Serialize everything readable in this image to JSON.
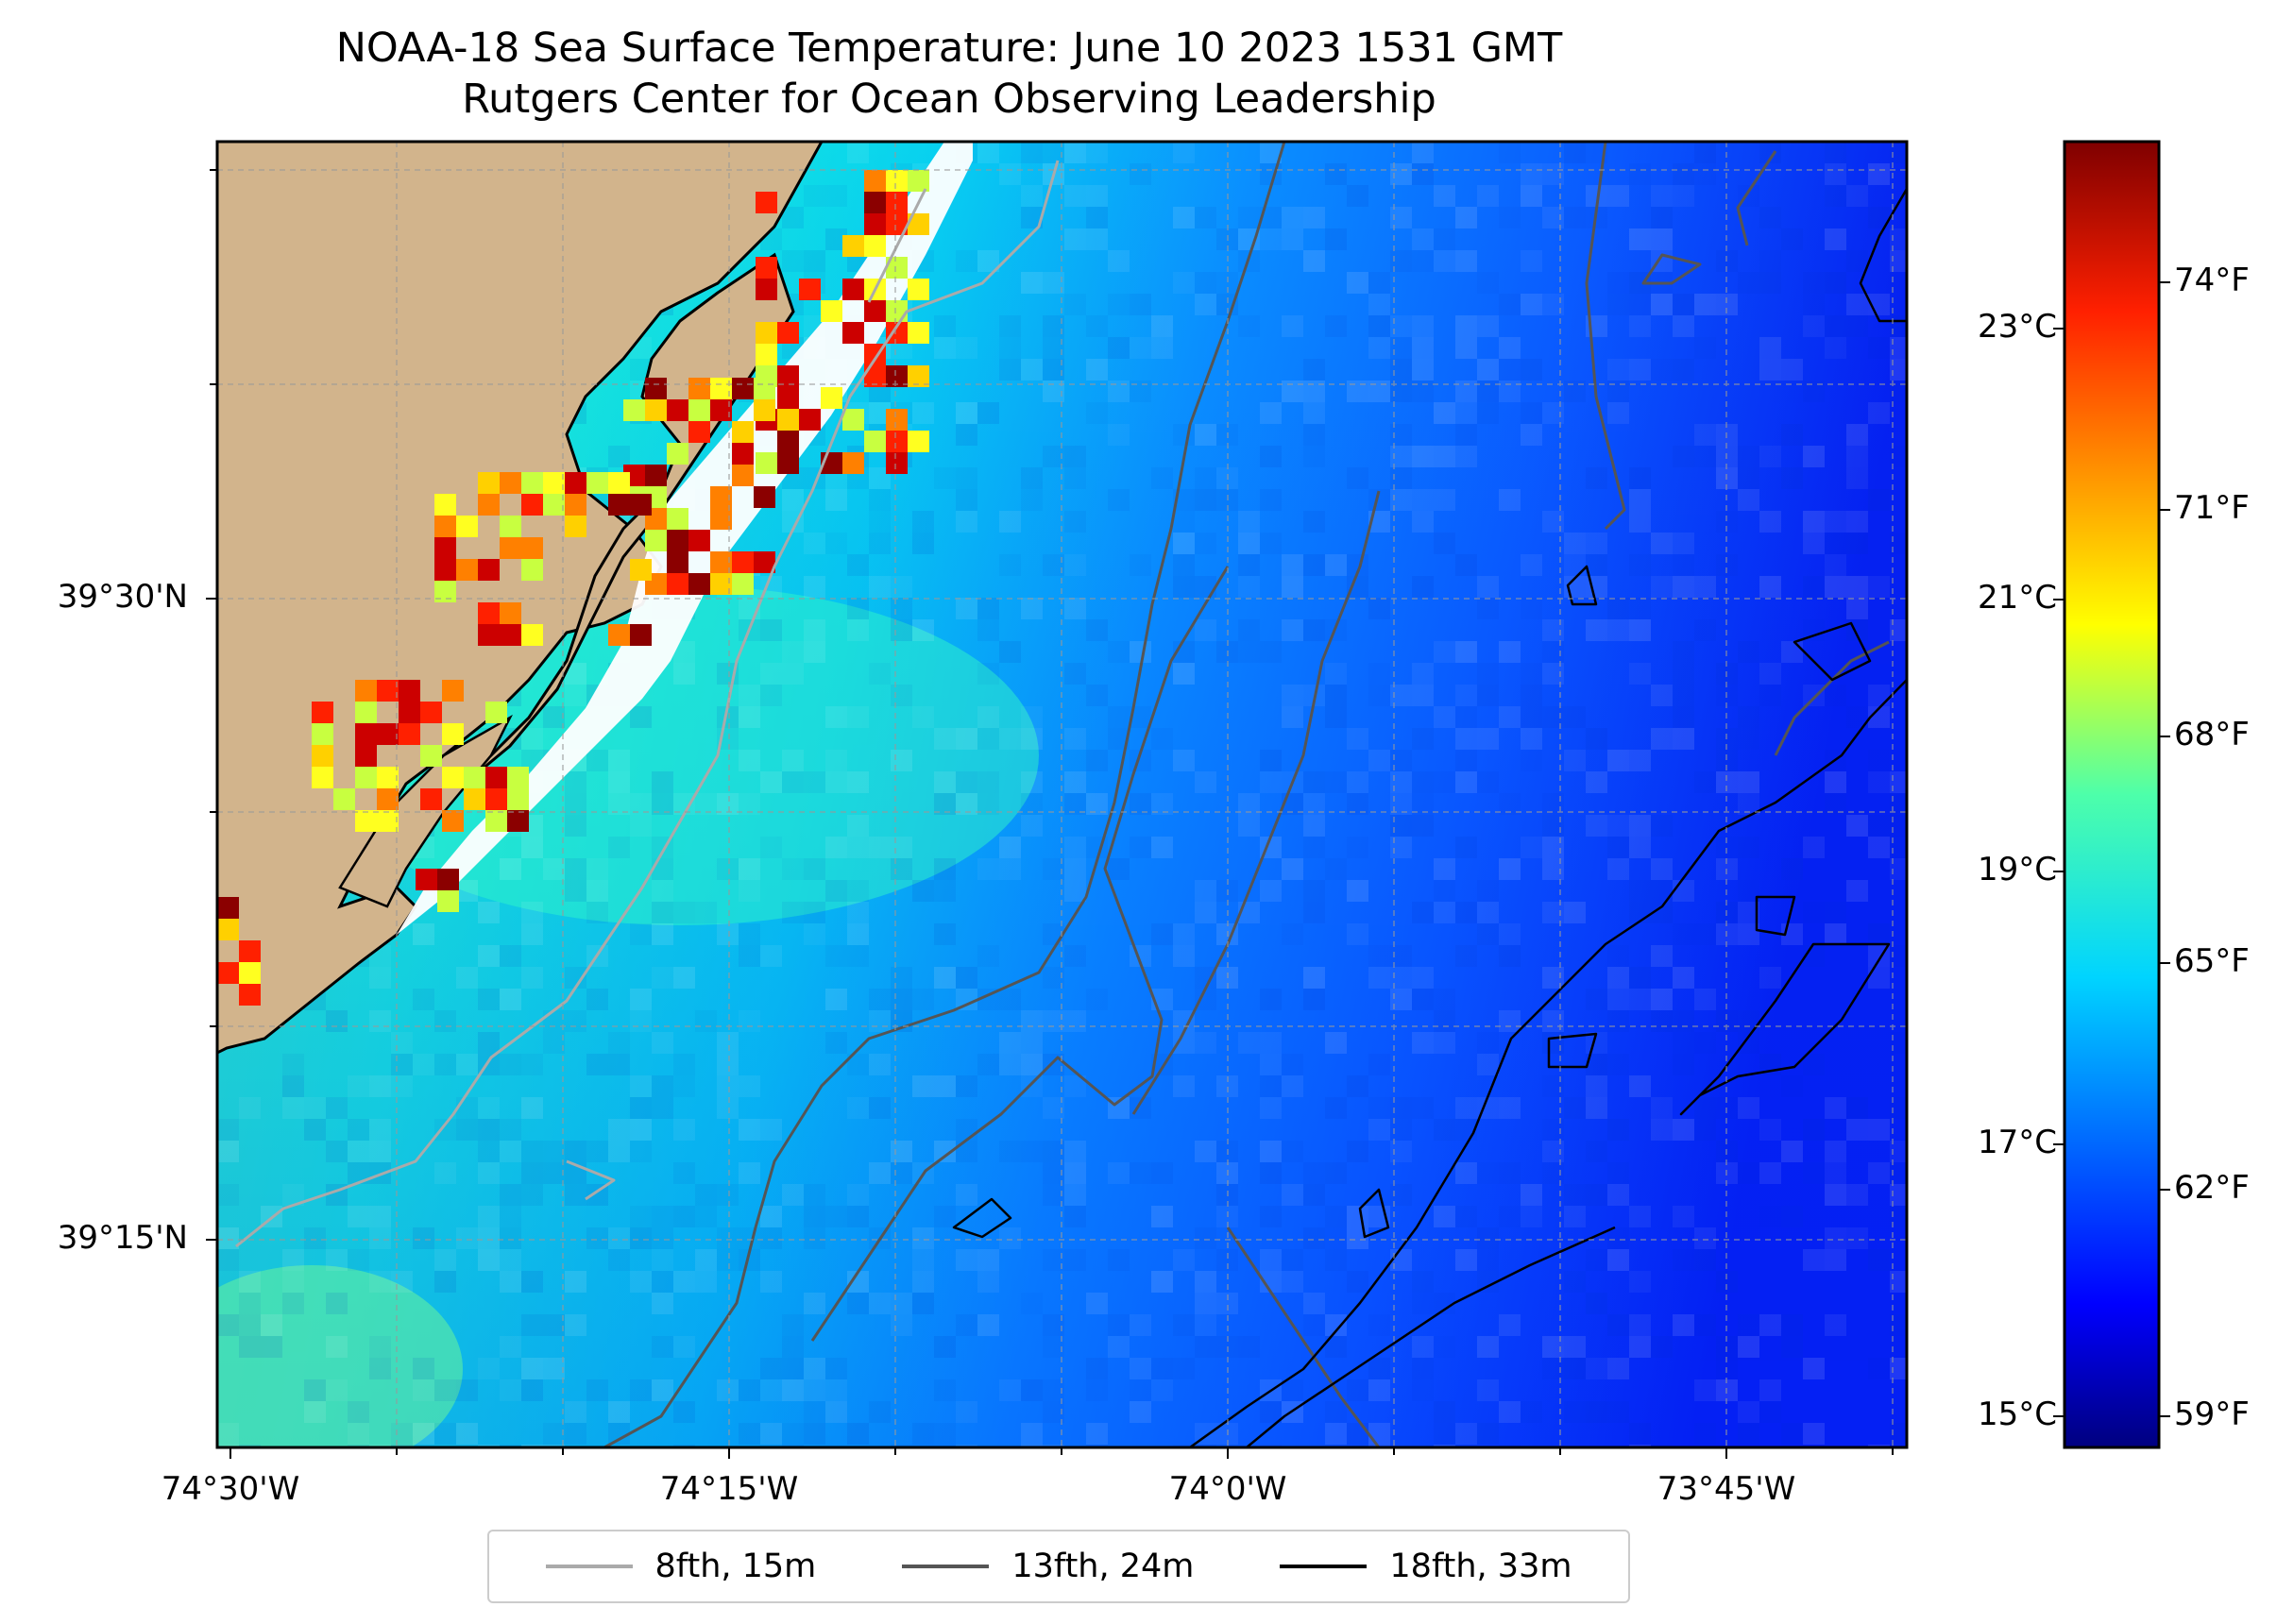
{
  "title": {
    "line1": "NOAA-18 Sea Surface Temperature: June 10 2023 1531 GMT",
    "line2": "Rutgers Center for Ocean Observing Leadership"
  },
  "lat_labels": [
    "39°30'N",
    "39°15'N"
  ],
  "lon_labels": [
    "74°30'W",
    "74°15'W",
    "74°0'W",
    "73°45'W"
  ],
  "colorbar": {
    "celsius_labels": [
      "23°C",
      "21°C",
      "19°C",
      "17°C",
      "15°C"
    ],
    "fahrenheit_labels": [
      "74°F",
      "71°F",
      "68°F",
      "65°F",
      "62°F",
      "59°F"
    ]
  },
  "legend": {
    "items": [
      {
        "label": "8fth, 15m",
        "color": "#aaaaaa"
      },
      {
        "label": "13fth, 24m",
        "color": "#555555"
      },
      {
        "label": "18fth, 33m",
        "color": "#000000"
      }
    ]
  },
  "colors": {
    "land": "#d2b48c",
    "ocean_warm": "#22f0d8",
    "ocean_mid": "#08c8f8",
    "ocean_cool": "#1060ff",
    "ocean_cold": "#0818f0"
  }
}
